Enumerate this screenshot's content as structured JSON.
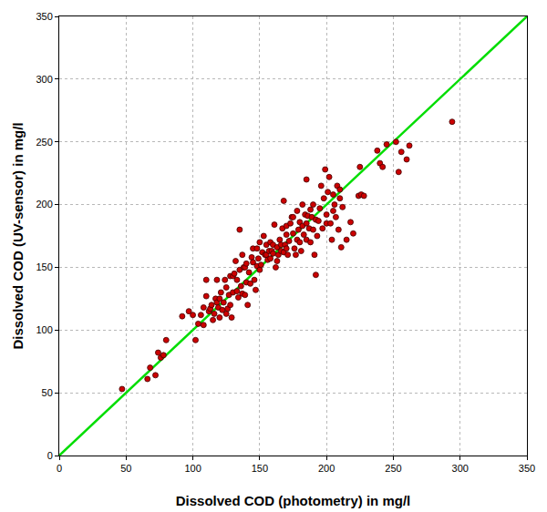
{
  "chart_data": {
    "type": "scatter",
    "x_label": "Dissolved COD (photometry) in mg/l",
    "y_label": "Dissolved COD (UV-sensor) in mg/l",
    "xlim": [
      0,
      350
    ],
    "ylim": [
      0,
      350
    ],
    "xticks": [
      0,
      50,
      100,
      150,
      200,
      250,
      300,
      350
    ],
    "yticks": [
      0,
      50,
      100,
      150,
      200,
      250,
      300,
      350
    ],
    "grid": true,
    "series": [
      {
        "type": "scatter",
        "color": "#cc0000",
        "marker": "circle",
        "x": [
          47,
          66,
          68,
          72,
          74,
          76,
          78,
          80,
          92,
          97,
          100,
          102,
          104,
          106,
          108,
          108,
          110,
          110,
          112,
          113,
          114,
          115,
          116,
          117,
          118,
          118,
          119,
          120,
          120,
          121,
          122,
          123,
          124,
          125,
          125,
          126,
          127,
          128,
          128,
          129,
          130,
          130,
          131,
          132,
          133,
          133,
          134,
          135,
          135,
          136,
          137,
          137,
          138,
          139,
          139,
          140,
          140,
          141,
          142,
          143,
          144,
          145,
          145,
          146,
          147,
          148,
          148,
          149,
          150,
          150,
          151,
          152,
          153,
          154,
          155,
          155,
          156,
          157,
          158,
          158,
          159,
          160,
          160,
          161,
          162,
          163,
          163,
          164,
          165,
          166,
          166,
          167,
          168,
          168,
          169,
          170,
          170,
          170,
          171,
          172,
          173,
          174,
          175,
          175,
          176,
          177,
          178,
          178,
          179,
          180,
          180,
          181,
          182,
          182,
          183,
          184,
          185,
          185,
          185,
          186,
          187,
          188,
          188,
          189,
          190,
          190,
          191,
          192,
          192,
          193,
          194,
          195,
          196,
          197,
          198,
          199,
          200,
          200,
          201,
          202,
          203,
          204,
          205,
          205,
          206,
          207,
          208,
          209,
          210,
          210,
          211,
          212,
          215,
          218,
          220,
          224,
          225,
          226,
          228,
          238,
          240,
          242,
          245,
          252,
          254,
          256,
          260,
          262,
          294
        ],
        "values": [
          53,
          61,
          70,
          64,
          82,
          78,
          80,
          92,
          111,
          115,
          112,
          92,
          105,
          112,
          118,
          104,
          127,
          140,
          115,
          117,
          120,
          108,
          113,
          125,
          140,
          122,
          118,
          110,
          125,
          130,
          116,
          122,
          140,
          113,
          134,
          117,
          128,
          120,
          143,
          110,
          130,
          143,
          145,
          155,
          140,
          131,
          126,
          180,
          148,
          135,
          160,
          129,
          150,
          128,
          150,
          138,
          153,
          120,
          146,
          137,
          158,
          154,
          165,
          140,
          132,
          165,
          151,
          157,
          148,
          170,
          152,
          162,
          175,
          160,
          168,
          160,
          156,
          163,
          170,
          157,
          163,
          161,
          168,
          184,
          150,
          166,
          155,
          160,
          172,
          163,
          168,
          181,
          203,
          162,
          168,
          165,
          176,
          183,
          160,
          171,
          185,
          190,
          177,
          190,
          165,
          160,
          172,
          195,
          180,
          170,
          186,
          163,
          200,
          183,
          176,
          192,
          220,
          185,
          172,
          191,
          181,
          196,
          170,
          190,
          180,
          200,
          160,
          144,
          188,
          175,
          187,
          197,
          215,
          181,
          205,
          228,
          192,
          185,
          210,
          222,
          185,
          172,
          208,
          195,
          200,
          190,
          215,
          180,
          205,
          212,
          166,
          198,
          172,
          186,
          177,
          207,
          230,
          208,
          207,
          243,
          233,
          230,
          248,
          250,
          226,
          242,
          236,
          247,
          266
        ]
      },
      {
        "type": "line",
        "color": "#00dd00",
        "line_style": "solid",
        "x": [
          0,
          350
        ],
        "values": [
          0,
          350
        ]
      }
    ]
  }
}
